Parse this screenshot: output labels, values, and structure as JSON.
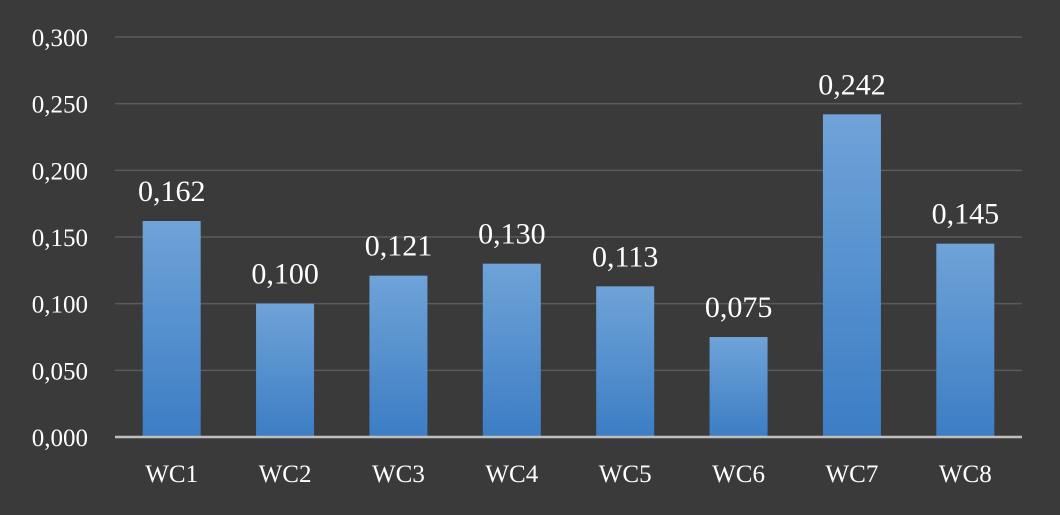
{
  "chart_data": {
    "type": "bar",
    "title": "",
    "xlabel": "",
    "ylabel": "",
    "categories": [
      "WC1",
      "WC2",
      "WC3",
      "WC4",
      "WC5",
      "WC6",
      "WC7",
      "WC8"
    ],
    "values": [
      0.162,
      0.1,
      0.121,
      0.13,
      0.113,
      0.075,
      0.242,
      0.145
    ],
    "data_labels": [
      "0,162",
      "0,100",
      "0,121",
      "0,130",
      "0,113",
      "0,075",
      "0,242",
      "0,145"
    ],
    "ylim": [
      0,
      0.3
    ],
    "yticks": [
      0,
      0.05,
      0.1,
      0.15,
      0.2,
      0.25,
      0.3
    ],
    "ytick_labels": [
      "0,000",
      "0,050",
      "0,100",
      "0,150",
      "0,200",
      "0,250",
      "0,300"
    ],
    "grid": true,
    "legend": "none",
    "colors": {
      "background": "#3a3a3a",
      "bar_top": "#6fa3d8",
      "bar_bottom": "#3c7dc4",
      "gridline": "#5a5a5a",
      "axis": "#bfbfbf",
      "text": "#ffffff"
    }
  }
}
